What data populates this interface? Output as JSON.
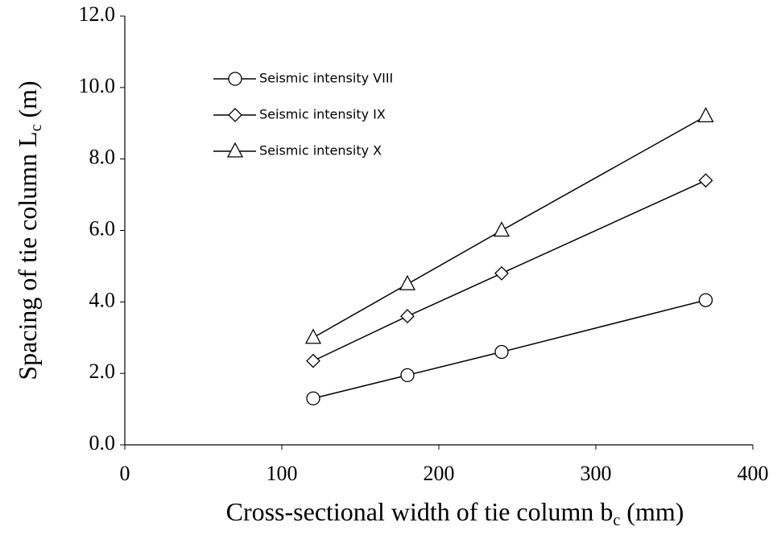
{
  "chart_data": {
    "type": "line",
    "xlabel": {
      "text": "Cross-sectional width of tie column b",
      "sub": "c",
      "unit": " (mm)"
    },
    "ylabel": {
      "text": "Spacing of tie column  L",
      "sub": "c",
      "unit": " (m)"
    },
    "x": [
      120,
      180,
      240,
      370
    ],
    "series": [
      {
        "name": "Seismic intensity VIII",
        "color": "#000000",
        "marker": "circle",
        "values": [
          1.3,
          1.95,
          2.6,
          4.05
        ]
      },
      {
        "name": "Seismic intensity IX",
        "color": "#000000",
        "marker": "diamond",
        "values": [
          2.35,
          3.6,
          4.8,
          7.4
        ]
      },
      {
        "name": "Seismic intensity X",
        "color": "#000000",
        "marker": "triangle",
        "values": [
          3.0,
          4.5,
          6.0,
          9.2
        ]
      }
    ],
    "xlim": [
      0,
      400
    ],
    "xticks": [
      0,
      100,
      200,
      300,
      400
    ],
    "ylim": [
      0,
      12
    ],
    "yticks": [
      {
        "value": 0,
        "label": "0.0"
      },
      {
        "value": 2,
        "label": "2.0"
      },
      {
        "value": 4,
        "label": "4.0"
      },
      {
        "value": 6,
        "label": "6.0"
      },
      {
        "value": 8,
        "label": "8.0"
      },
      {
        "value": 10,
        "label": "10.0"
      },
      {
        "value": 12,
        "label": "12.0"
      }
    ],
    "legend": "upper left",
    "grid": false
  }
}
